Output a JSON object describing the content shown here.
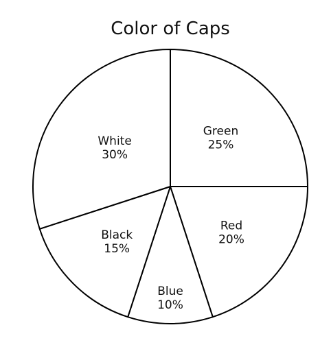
{
  "chart_data": {
    "type": "pie",
    "title": "Color of Caps",
    "slices": [
      {
        "label": "Green",
        "value": 25,
        "value_label": "25%"
      },
      {
        "label": "Red",
        "value": 20,
        "value_label": "20%"
      },
      {
        "label": "Blue",
        "value": 10,
        "value_label": "10%"
      },
      {
        "label": "Black",
        "value": 15,
        "value_label": "15%"
      },
      {
        "label": "White",
        "value": 30,
        "value_label": "30%"
      }
    ],
    "start": "top",
    "direction": "clockwise",
    "fill_color": "#ffffff",
    "stroke_color": "#000000",
    "legend": "none"
  }
}
